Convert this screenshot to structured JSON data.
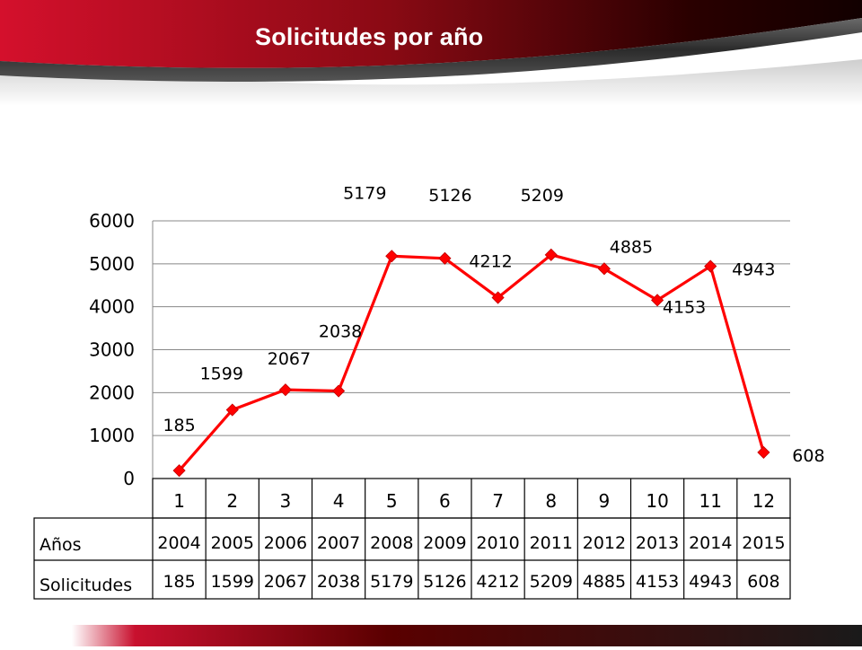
{
  "slide": {
    "title": "Solicitudes por año",
    "colors": {
      "banner_left": "#c8102e",
      "banner_right": "#1a0000",
      "line": "#ff0000"
    }
  },
  "chart_data": {
    "type": "line",
    "x": [
      1,
      2,
      3,
      4,
      5,
      6,
      7,
      8,
      9,
      10,
      11,
      12
    ],
    "series": [
      {
        "values": [
          185,
          1599,
          2067,
          2038,
          5179,
          5126,
          4212,
          5209,
          4885,
          4153,
          4943,
          608
        ]
      }
    ],
    "data_labels": [
      "185",
      "1599",
      "2067",
      "2038",
      "5179",
      "5126",
      "4212",
      "5209",
      "4885",
      "4153",
      "4943",
      "608"
    ],
    "ylim": [
      0,
      6000
    ],
    "yticks": [
      0,
      1000,
      2000,
      3000,
      4000,
      5000,
      6000
    ],
    "grid": true,
    "marker": "diamond",
    "table": {
      "row_headers": [
        "Años",
        "Solicitudes"
      ],
      "years": [
        "2004",
        "2005",
        "2006",
        "2007",
        "2008",
        "2009",
        "2010",
        "2011",
        "2012",
        "2013",
        "2014",
        "2015"
      ],
      "values": [
        "185",
        "1599",
        "2067",
        "2038",
        "5179",
        "5126",
        "4212",
        "5209",
        "4885",
        "4153",
        "4943",
        "608"
      ]
    }
  }
}
